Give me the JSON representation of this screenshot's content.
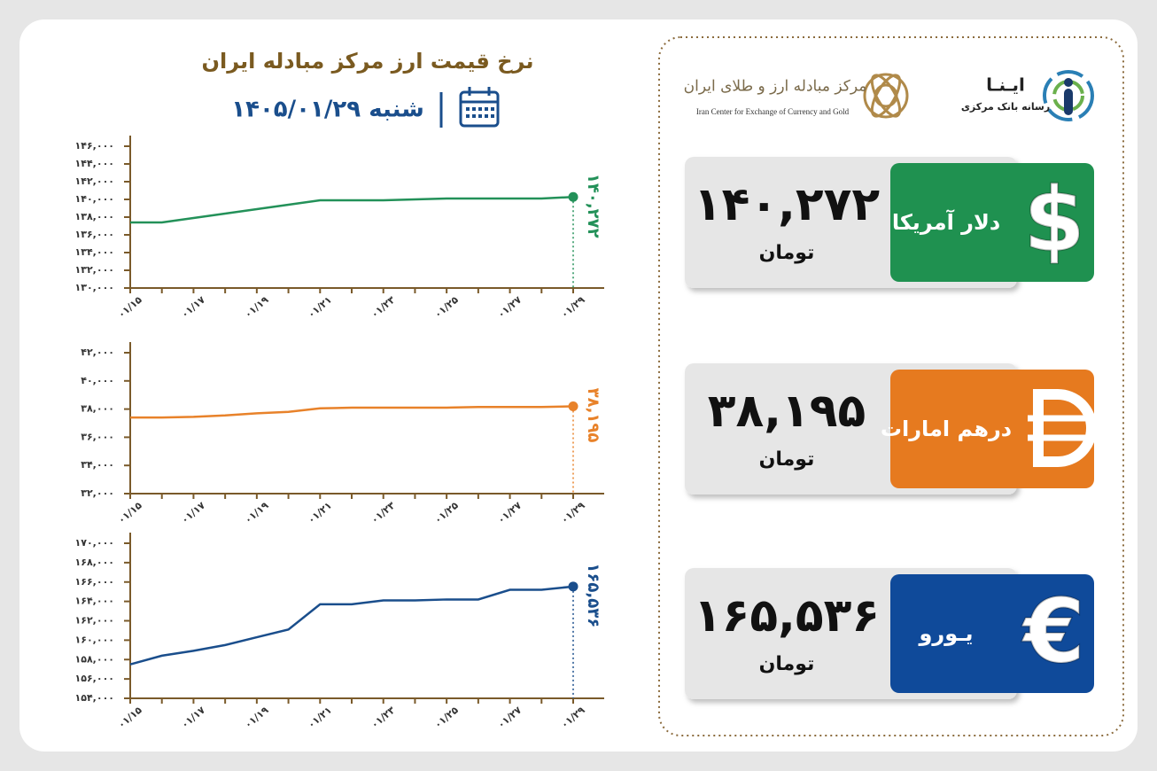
{
  "header": {
    "title": "نرخ قیمت ارز مرکز مبادله ایران",
    "date": "شنبه ۱۴۰۵/۰۱/۲۹"
  },
  "logos": {
    "agency": "ایـنـا",
    "agency_subtitle": "رسانه بانک مرکزی",
    "center": "مرکز مبادله ارز و طلای ایران",
    "center_en": "Iran Center for Exchange of Currency and Gold"
  },
  "cards": [
    {
      "name": "دلار آمریکا",
      "value": "۱۴۰,۲۷۲",
      "unit": "تومان",
      "symbol": "$",
      "color": "#1f9150"
    },
    {
      "name": "درهم امارات",
      "value": "۳۸,۱۹۵",
      "unit": "تومان",
      "color": "#e67a1f"
    },
    {
      "name": "یـورو",
      "value": "۱۶۵,۵۳۶",
      "unit": "تومان",
      "symbol": "€",
      "color": "#0f4a9a"
    }
  ],
  "chart_data": [
    {
      "type": "line",
      "color": "#239159",
      "categories": [
        "۰۱/۱۵",
        null,
        "۰۱/۱۷",
        null,
        "۰۱/۱۹",
        null,
        "۰۱/۲۱",
        null,
        "۰۱/۲۳",
        null,
        "۰۱/۲۵",
        null,
        "۰۱/۲۷",
        null,
        "۰۱/۲۹"
      ],
      "values": [
        137400,
        137400,
        137900,
        138400,
        138900,
        139400,
        139900,
        139900,
        139900,
        140000,
        140100,
        140100,
        140100,
        140100,
        140272
      ],
      "value_labels": [
        null,
        null,
        null,
        null,
        null,
        null,
        null,
        null,
        null,
        null,
        null,
        null,
        null,
        null,
        "۱۴۰,۲۷۲"
      ],
      "ylim": [
        130000,
        146000
      ],
      "yticks": [
        {
          "value": 130000,
          "label": "۱۳۰,۰۰۰"
        },
        {
          "value": 132000,
          "label": "۱۳۲,۰۰۰"
        },
        {
          "value": 134000,
          "label": "۱۳۴,۰۰۰"
        },
        {
          "value": 136000,
          "label": "۱۳۶,۰۰۰"
        },
        {
          "value": 138000,
          "label": "۱۳۸,۰۰۰"
        },
        {
          "value": 140000,
          "label": "۱۴۰,۰۰۰"
        },
        {
          "value": 142000,
          "label": "۱۴۲,۰۰۰"
        },
        {
          "value": 144000,
          "label": "۱۴۴,۰۰۰"
        },
        {
          "value": 146000,
          "label": "۱۴۶,۰۰۰"
        }
      ]
    },
    {
      "type": "line",
      "color": "#e8822a",
      "categories": [
        "۰۱/۱۵",
        null,
        "۰۱/۱۷",
        null,
        "۰۱/۱۹",
        null,
        "۰۱/۲۱",
        null,
        "۰۱/۲۳",
        null,
        "۰۱/۲۵",
        null,
        "۰۱/۲۷",
        null,
        "۰۱/۲۹"
      ],
      "values": [
        37400,
        37400,
        37450,
        37550,
        37700,
        37800,
        38050,
        38100,
        38100,
        38100,
        38100,
        38150,
        38150,
        38150,
        38195
      ],
      "value_labels": [
        null,
        null,
        null,
        null,
        null,
        null,
        null,
        null,
        null,
        null,
        null,
        null,
        null,
        null,
        "۳۸,۱۹۵"
      ],
      "ylim": [
        32000,
        42000
      ],
      "yticks": [
        {
          "value": 32000,
          "label": "۳۲,۰۰۰"
        },
        {
          "value": 34000,
          "label": "۳۴,۰۰۰"
        },
        {
          "value": 36000,
          "label": "۳۶,۰۰۰"
        },
        {
          "value": 38000,
          "label": "۳۸,۰۰۰"
        },
        {
          "value": 40000,
          "label": "۴۰,۰۰۰"
        },
        {
          "value": 42000,
          "label": "۴۲,۰۰۰"
        }
      ]
    },
    {
      "type": "line",
      "color": "#1a4e8c",
      "categories": [
        "۰۱/۱۵",
        null,
        "۰۱/۱۷",
        null,
        "۰۱/۱۹",
        null,
        "۰۱/۲۱",
        null,
        "۰۱/۲۳",
        null,
        "۰۱/۲۵",
        null,
        "۰۱/۲۷",
        null,
        "۰۱/۲۹"
      ],
      "values": [
        157500,
        158400,
        158900,
        159500,
        160300,
        161100,
        163700,
        163700,
        164100,
        164100,
        164200,
        164200,
        165200,
        165200,
        165536
      ],
      "value_labels": [
        null,
        null,
        null,
        null,
        null,
        null,
        null,
        null,
        null,
        null,
        null,
        null,
        null,
        null,
        "۱۶۵,۵۳۶"
      ],
      "ylim": [
        154000,
        170000
      ],
      "yticks": [
        {
          "value": 154000,
          "label": "۱۵۴,۰۰۰"
        },
        {
          "value": 156000,
          "label": "۱۵۶,۰۰۰"
        },
        {
          "value": 158000,
          "label": "۱۵۸,۰۰۰"
        },
        {
          "value": 160000,
          "label": "۱۶۰,۰۰۰"
        },
        {
          "value": 162000,
          "label": "۱۶۲,۰۰۰"
        },
        {
          "value": 164000,
          "label": "۱۶۴,۰۰۰"
        },
        {
          "value": 166000,
          "label": "۱۶۶,۰۰۰"
        },
        {
          "value": 168000,
          "label": "۱۶۸,۰۰۰"
        },
        {
          "value": 170000,
          "label": "۱۷۰,۰۰۰"
        }
      ]
    }
  ]
}
